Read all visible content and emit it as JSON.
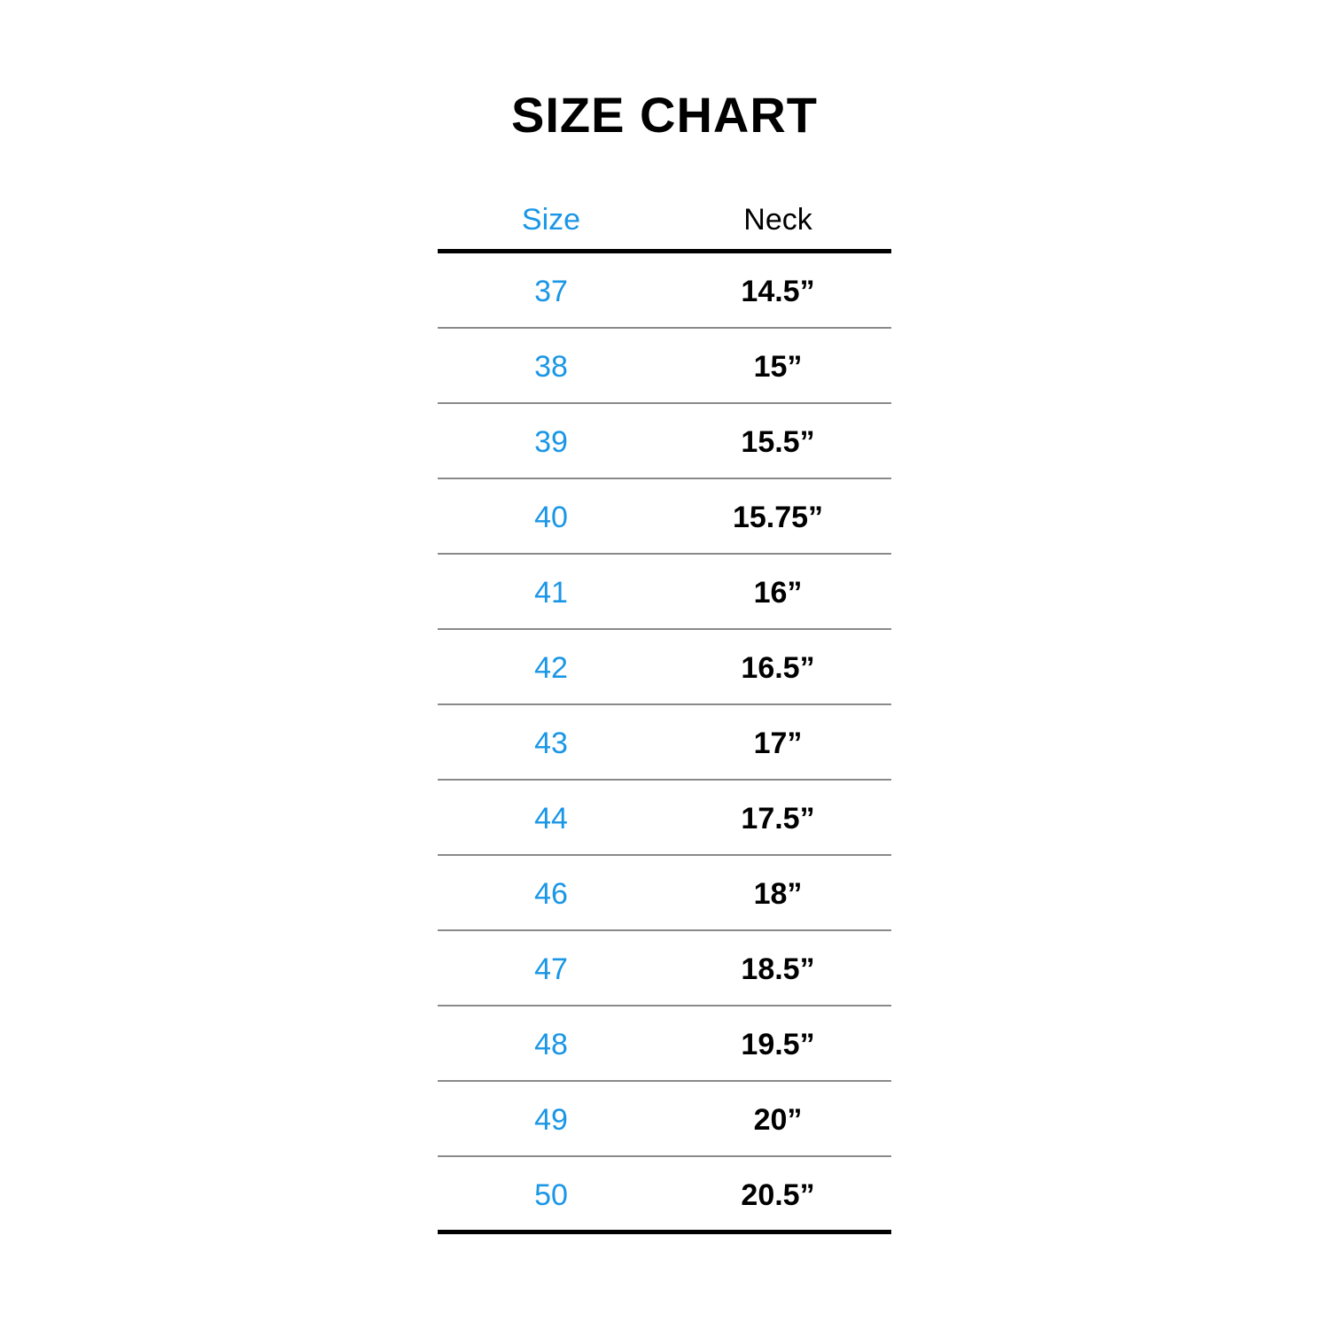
{
  "title": "SIZE CHART",
  "colors": {
    "accent": "#1a96e6",
    "text": "#000000",
    "divider": "#8a8a8a"
  },
  "headers": {
    "size": "Size",
    "neck": "Neck"
  },
  "rows": [
    {
      "size": "37",
      "neck": "14.5”"
    },
    {
      "size": "38",
      "neck": "15”"
    },
    {
      "size": "39",
      "neck": "15.5”"
    },
    {
      "size": "40",
      "neck": "15.75”"
    },
    {
      "size": "41",
      "neck": "16”"
    },
    {
      "size": "42",
      "neck": "16.5”"
    },
    {
      "size": "43",
      "neck": "17”"
    },
    {
      "size": "44",
      "neck": "17.5”"
    },
    {
      "size": "46",
      "neck": "18”"
    },
    {
      "size": "47",
      "neck": "18.5”"
    },
    {
      "size": "48",
      "neck": "19.5”"
    },
    {
      "size": "49",
      "neck": "20”"
    },
    {
      "size": "50",
      "neck": "20.5”"
    }
  ]
}
